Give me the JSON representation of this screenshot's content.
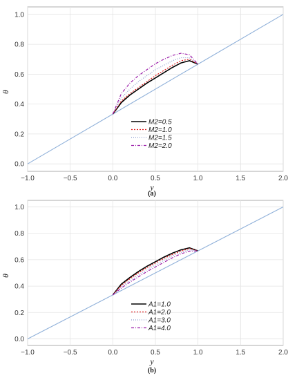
{
  "chart_data": [
    {
      "type": "line",
      "panel_label": "(a)",
      "xlabel": "y",
      "ylabel": "θ",
      "xlim": [
        -1.0,
        2.0
      ],
      "ylim": [
        -0.05,
        1.05
      ],
      "xticks": [
        "−1.0",
        "−0.5",
        "0.0",
        "0.5",
        "1.0",
        "1.5",
        "2.0"
      ],
      "xtick_values": [
        -1.0,
        -0.5,
        0.0,
        0.5,
        1.0,
        1.5,
        2.0
      ],
      "yticks": [
        "0.0",
        "0.2",
        "0.4",
        "0.6",
        "0.8",
        "1.0"
      ],
      "ytick_values": [
        0.0,
        0.2,
        0.4,
        0.6,
        0.8,
        1.0
      ],
      "grid": true,
      "legend_position": "bottom-center",
      "base_line": {
        "color": "#8fb0d9",
        "x": [
          -1.0,
          0.0,
          1.0,
          2.0
        ],
        "y": [
          0.0,
          0.333,
          0.667,
          1.0
        ]
      },
      "series": [
        {
          "name": "M2=0.5",
          "color": "#000000",
          "dash": "",
          "width": 1.6,
          "x": [
            0.0,
            0.1,
            0.2,
            0.3,
            0.4,
            0.5,
            0.6,
            0.7,
            0.8,
            0.9,
            1.0
          ],
          "y": [
            0.333,
            0.41,
            0.46,
            0.5,
            0.54,
            0.575,
            0.61,
            0.645,
            0.675,
            0.69,
            0.667
          ]
        },
        {
          "name": "M2=1.0",
          "color": "#e02020",
          "dash": "2,2",
          "width": 1.2,
          "x": [
            0.0,
            0.1,
            0.2,
            0.3,
            0.4,
            0.5,
            0.6,
            0.7,
            0.8,
            0.9,
            1.0
          ],
          "y": [
            0.333,
            0.42,
            0.47,
            0.51,
            0.55,
            0.59,
            0.625,
            0.66,
            0.69,
            0.7,
            0.667
          ]
        },
        {
          "name": "M2=1.5",
          "color": "#8899cc",
          "dash": "1,2",
          "width": 1.2,
          "x": [
            0.0,
            0.1,
            0.2,
            0.3,
            0.4,
            0.5,
            0.6,
            0.7,
            0.8,
            0.9,
            1.0
          ],
          "y": [
            0.333,
            0.44,
            0.5,
            0.55,
            0.59,
            0.63,
            0.66,
            0.69,
            0.71,
            0.71,
            0.667
          ]
        },
        {
          "name": "M2=2.0",
          "color": "#9a1aa8",
          "dash": "4,2,1,2",
          "width": 1.2,
          "x": [
            0.0,
            0.1,
            0.2,
            0.3,
            0.4,
            0.5,
            0.6,
            0.7,
            0.8,
            0.9,
            1.0
          ],
          "y": [
            0.333,
            0.47,
            0.54,
            0.59,
            0.63,
            0.67,
            0.7,
            0.725,
            0.74,
            0.73,
            0.667
          ]
        }
      ]
    },
    {
      "type": "line",
      "panel_label": "(b)",
      "xlabel": "y",
      "ylabel": "θ",
      "xlim": [
        -1.0,
        2.0
      ],
      "ylim": [
        -0.05,
        1.05
      ],
      "xticks": [
        "−1.0",
        "−0.5",
        "0.0",
        "0.5",
        "1.0",
        "1.5",
        "2.0"
      ],
      "xtick_values": [
        -1.0,
        -0.5,
        0.0,
        0.5,
        1.0,
        1.5,
        2.0
      ],
      "yticks": [
        "0.0",
        "0.2",
        "0.4",
        "0.6",
        "0.8",
        "1.0"
      ],
      "ytick_values": [
        0.0,
        0.2,
        0.4,
        0.6,
        0.8,
        1.0
      ],
      "grid": true,
      "legend_position": "bottom-center",
      "base_line": {
        "color": "#8fb0d9",
        "x": [
          -1.0,
          0.0,
          1.0,
          2.0
        ],
        "y": [
          0.0,
          0.333,
          0.667,
          1.0
        ]
      },
      "series": [
        {
          "name": "A1=1.0",
          "color": "#000000",
          "dash": "",
          "width": 1.6,
          "x": [
            0.0,
            0.1,
            0.2,
            0.3,
            0.4,
            0.5,
            0.6,
            0.7,
            0.8,
            0.9,
            1.0
          ],
          "y": [
            0.333,
            0.415,
            0.465,
            0.51,
            0.55,
            0.585,
            0.62,
            0.65,
            0.675,
            0.69,
            0.667
          ]
        },
        {
          "name": "A1=2.0",
          "color": "#e02020",
          "dash": "2,2",
          "width": 1.2,
          "x": [
            0.0,
            0.1,
            0.2,
            0.3,
            0.4,
            0.5,
            0.6,
            0.7,
            0.8,
            0.9,
            1.0
          ],
          "y": [
            0.333,
            0.405,
            0.455,
            0.5,
            0.54,
            0.575,
            0.61,
            0.64,
            0.665,
            0.685,
            0.667
          ]
        },
        {
          "name": "A1=3.0",
          "color": "#8899cc",
          "dash": "1,2",
          "width": 1.2,
          "x": [
            0.0,
            0.1,
            0.2,
            0.3,
            0.4,
            0.5,
            0.6,
            0.7,
            0.8,
            0.9,
            1.0
          ],
          "y": [
            0.333,
            0.395,
            0.44,
            0.485,
            0.525,
            0.56,
            0.595,
            0.63,
            0.655,
            0.675,
            0.667
          ]
        },
        {
          "name": "A1=4.0",
          "color": "#9a1aa8",
          "dash": "4,2,1,2",
          "width": 1.2,
          "x": [
            0.0,
            0.1,
            0.2,
            0.3,
            0.4,
            0.5,
            0.6,
            0.7,
            0.8,
            0.9,
            1.0
          ],
          "y": [
            0.333,
            0.385,
            0.43,
            0.47,
            0.51,
            0.545,
            0.58,
            0.615,
            0.645,
            0.665,
            0.667
          ]
        }
      ]
    }
  ]
}
